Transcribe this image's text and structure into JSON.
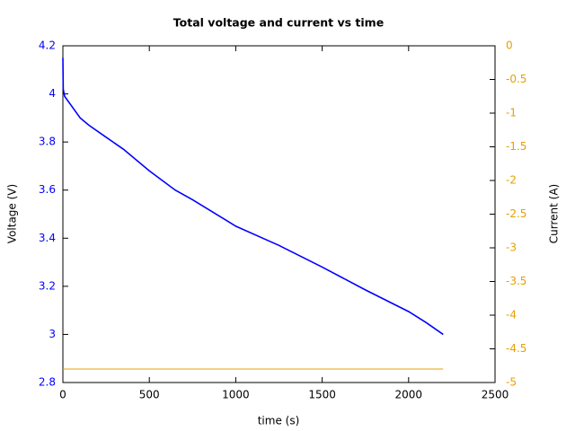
{
  "chart_data": {
    "type": "line",
    "title": "Total voltage and current vs time",
    "x_label": "time (s)",
    "y_label": "Voltage (V)",
    "y2_label": "Current (A)",
    "xlim": [
      0,
      2500
    ],
    "xticks": [
      0,
      500,
      1000,
      1500,
      2000,
      2500
    ],
    "ylim": [
      2.8,
      4.2
    ],
    "yticks": [
      2.8,
      3,
      3.2,
      3.4,
      3.6,
      3.8,
      4,
      4.2
    ],
    "y2lim": [
      -5,
      0
    ],
    "y2ticks": [
      -5,
      -4.5,
      -4,
      -3.5,
      -3,
      -2.5,
      -2,
      -1.5,
      -1,
      -0.5,
      0
    ],
    "y_color": "#0000ff",
    "y2_color": "#e6a000",
    "series": [
      {
        "name": "Voltage",
        "color": "#0000ff",
        "x": [
          0,
          2,
          10,
          50,
          100,
          150,
          250,
          350,
          500,
          650,
          750,
          1000,
          1250,
          1500,
          1750,
          2000,
          2100,
          2200
        ],
        "values": [
          4.15,
          4.02,
          3.99,
          3.95,
          3.9,
          3.87,
          3.82,
          3.77,
          3.68,
          3.6,
          3.56,
          3.45,
          3.37,
          3.28,
          3.185,
          3.095,
          3.05,
          3.0
        ]
      },
      {
        "name": "Current",
        "color": "#e6a000",
        "axis": "y2",
        "x": [
          0,
          2200
        ],
        "values": [
          -4.8,
          -4.8
        ]
      }
    ]
  }
}
